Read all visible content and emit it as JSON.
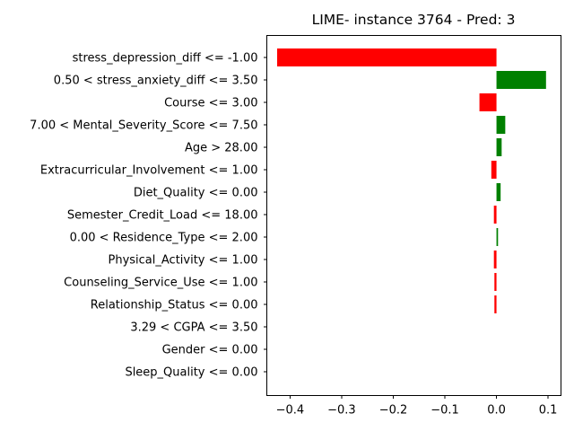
{
  "chart_data": {
    "type": "bar",
    "orientation": "horizontal",
    "title": "LIME- instance 3764 - Pred: 3",
    "xlabel": "",
    "ylabel": "",
    "xlim": [
      -0.445,
      0.125
    ],
    "xticks": [
      -0.4,
      -0.3,
      -0.2,
      -0.1,
      0.0,
      0.1
    ],
    "xtick_labels": [
      "−0.4",
      "−0.3",
      "−0.2",
      "−0.1",
      "0.0",
      "0.1"
    ],
    "grid": false,
    "colors": {
      "positive": "#008000",
      "negative": "#ff0000"
    },
    "categories": [
      "stress_depression_diff <= -1.00",
      "0.50 < stress_anxiety_diff <= 3.50",
      "Course <= 3.00",
      "7.00 < Mental_Severity_Score <= 7.50",
      "Age > 28.00",
      "Extracurricular_Involvement <= 1.00",
      "Diet_Quality <= 0.00",
      "Semester_Credit_Load <= 18.00",
      "0.00 < Residence_Type <= 2.00",
      "Physical_Activity <= 1.00",
      "Counseling_Service_Use <= 1.00",
      "Relationship_Status <= 0.00",
      "3.29 < CGPA <= 3.50",
      "Gender <= 0.00",
      "Sleep_Quality <= 0.00"
    ],
    "values": [
      -0.425,
      0.096,
      -0.033,
      0.017,
      0.01,
      -0.01,
      0.008,
      -0.005,
      0.003,
      -0.005,
      -0.004,
      -0.004,
      0.0,
      0.0,
      0.0
    ]
  }
}
